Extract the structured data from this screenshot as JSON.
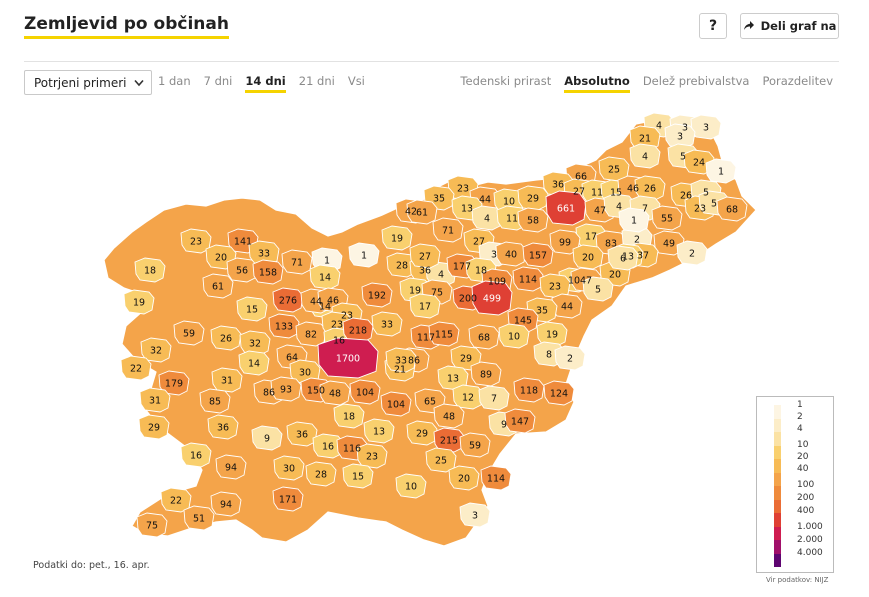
{
  "header": {
    "title": "Zemljevid po občinah",
    "help_label": "?",
    "share_label": "Deli graf na"
  },
  "filters": {
    "metric_select": "Potrjeni primeri",
    "periods": [
      "1 dan",
      "7 dni",
      "14 dni",
      "21 dni",
      "Vsi"
    ],
    "active_period": "14 dni",
    "modes": [
      "Tedenski prirast",
      "Absolutno",
      "Delež prebivalstva",
      "Porazdelitev"
    ],
    "active_mode": "Absolutno"
  },
  "map": {
    "regions": [
      {
        "value": "4"
      },
      {
        "value": "3"
      },
      {
        "value": "3"
      },
      {
        "value": "21"
      },
      {
        "value": "3"
      },
      {
        "value": "4"
      },
      {
        "value": "5"
      },
      {
        "value": "24"
      },
      {
        "value": "1"
      },
      {
        "value": "25"
      },
      {
        "value": "66"
      },
      {
        "value": "36"
      },
      {
        "value": "27"
      },
      {
        "value": "11"
      },
      {
        "value": "15"
      },
      {
        "value": "46"
      },
      {
        "value": "26"
      },
      {
        "value": "26"
      },
      {
        "value": "5"
      },
      {
        "value": "23"
      },
      {
        "value": "5"
      },
      {
        "value": "68"
      },
      {
        "value": "23"
      },
      {
        "value": "35"
      },
      {
        "value": "44"
      },
      {
        "value": "10"
      },
      {
        "value": "29"
      },
      {
        "value": "661"
      },
      {
        "value": "47"
      },
      {
        "value": "4"
      },
      {
        "value": "7"
      },
      {
        "value": "55"
      },
      {
        "value": "42"
      },
      {
        "value": "61"
      },
      {
        "value": "13"
      },
      {
        "value": "4"
      },
      {
        "value": "11"
      },
      {
        "value": "58"
      },
      {
        "value": "71"
      },
      {
        "value": "27"
      },
      {
        "value": "17"
      },
      {
        "value": "83"
      },
      {
        "value": "2"
      },
      {
        "value": "1"
      },
      {
        "value": "49"
      },
      {
        "value": "2"
      },
      {
        "value": "23"
      },
      {
        "value": "141"
      },
      {
        "value": "33"
      },
      {
        "value": "20"
      },
      {
        "value": "56"
      },
      {
        "value": "158"
      },
      {
        "value": "71"
      },
      {
        "value": "1"
      },
      {
        "value": "1"
      },
      {
        "value": "19"
      },
      {
        "value": "3"
      },
      {
        "value": "40"
      },
      {
        "value": "157"
      },
      {
        "value": "99"
      },
      {
        "value": "20"
      },
      {
        "value": "37"
      },
      {
        "value": "13"
      },
      {
        "value": "20"
      },
      {
        "value": "6"
      },
      {
        "value": "18"
      },
      {
        "value": "61"
      },
      {
        "value": "14"
      },
      {
        "value": "28"
      },
      {
        "value": "36"
      },
      {
        "value": "4"
      },
      {
        "value": "27"
      },
      {
        "value": "177"
      },
      {
        "value": "18"
      },
      {
        "value": "114"
      },
      {
        "value": "109"
      },
      {
        "value": "10"
      },
      {
        "value": "47"
      },
      {
        "value": "23"
      },
      {
        "value": "5"
      },
      {
        "value": "19"
      },
      {
        "value": "276"
      },
      {
        "value": "14"
      },
      {
        "value": "192"
      },
      {
        "value": "19"
      },
      {
        "value": "75"
      },
      {
        "value": "200"
      },
      {
        "value": "499"
      },
      {
        "value": "44"
      },
      {
        "value": "15"
      },
      {
        "value": "44"
      },
      {
        "value": "46"
      },
      {
        "value": "17"
      },
      {
        "value": "23"
      },
      {
        "value": "35"
      },
      {
        "value": "145"
      },
      {
        "value": "59"
      },
      {
        "value": "133"
      },
      {
        "value": "82"
      },
      {
        "value": "23"
      },
      {
        "value": "16"
      },
      {
        "value": "218"
      },
      {
        "value": "33"
      },
      {
        "value": "117"
      },
      {
        "value": "115"
      },
      {
        "value": "68"
      },
      {
        "value": "10"
      },
      {
        "value": "19"
      },
      {
        "value": "26"
      },
      {
        "value": "32"
      },
      {
        "value": "32"
      },
      {
        "value": "64"
      },
      {
        "value": "14"
      },
      {
        "value": "1700"
      },
      {
        "value": "86"
      },
      {
        "value": "29"
      },
      {
        "value": "8"
      },
      {
        "value": "2"
      },
      {
        "value": "22"
      },
      {
        "value": "179"
      },
      {
        "value": "31"
      },
      {
        "value": "30"
      },
      {
        "value": "21"
      },
      {
        "value": "89"
      },
      {
        "value": "33"
      },
      {
        "value": "85"
      },
      {
        "value": "86"
      },
      {
        "value": "93"
      },
      {
        "value": "150"
      },
      {
        "value": "48"
      },
      {
        "value": "104"
      },
      {
        "value": "13"
      },
      {
        "value": "118"
      },
      {
        "value": "124"
      },
      {
        "value": "12"
      },
      {
        "value": "7"
      },
      {
        "value": "104"
      },
      {
        "value": "65"
      },
      {
        "value": "31"
      },
      {
        "value": "29"
      },
      {
        "value": "36"
      },
      {
        "value": "36"
      },
      {
        "value": "18"
      },
      {
        "value": "48"
      },
      {
        "value": "9"
      },
      {
        "value": "147"
      },
      {
        "value": "9"
      },
      {
        "value": "13"
      },
      {
        "value": "29"
      },
      {
        "value": "215"
      },
      {
        "value": "59"
      },
      {
        "value": "16"
      },
      {
        "value": "16"
      },
      {
        "value": "116"
      },
      {
        "value": "23"
      },
      {
        "value": "25"
      },
      {
        "value": "94"
      },
      {
        "value": "30"
      },
      {
        "value": "28"
      },
      {
        "value": "15"
      },
      {
        "value": "20"
      },
      {
        "value": "114"
      },
      {
        "value": "10"
      },
      {
        "value": "22"
      },
      {
        "value": "94"
      },
      {
        "value": "171"
      },
      {
        "value": "51"
      },
      {
        "value": "75"
      },
      {
        "value": "3"
      }
    ]
  },
  "legend": {
    "labels": [
      "1",
      "2",
      "4",
      "10",
      "20",
      "40",
      "100",
      "200",
      "400",
      "1.000",
      "2.000",
      "4.000"
    ],
    "colors": [
      "#fdf5e3",
      "#fcedc8",
      "#fbe2a4",
      "#f9d06e",
      "#f7bb55",
      "#f4a44a",
      "#ef8b3c",
      "#ea6c35",
      "#df4034",
      "#cf1d50",
      "#a10f6b",
      "#5e0571"
    ]
  },
  "footer": {
    "data_date": "Podatki do: pet., 16. apr.",
    "source": "Vir podatkov: NIJZ"
  }
}
